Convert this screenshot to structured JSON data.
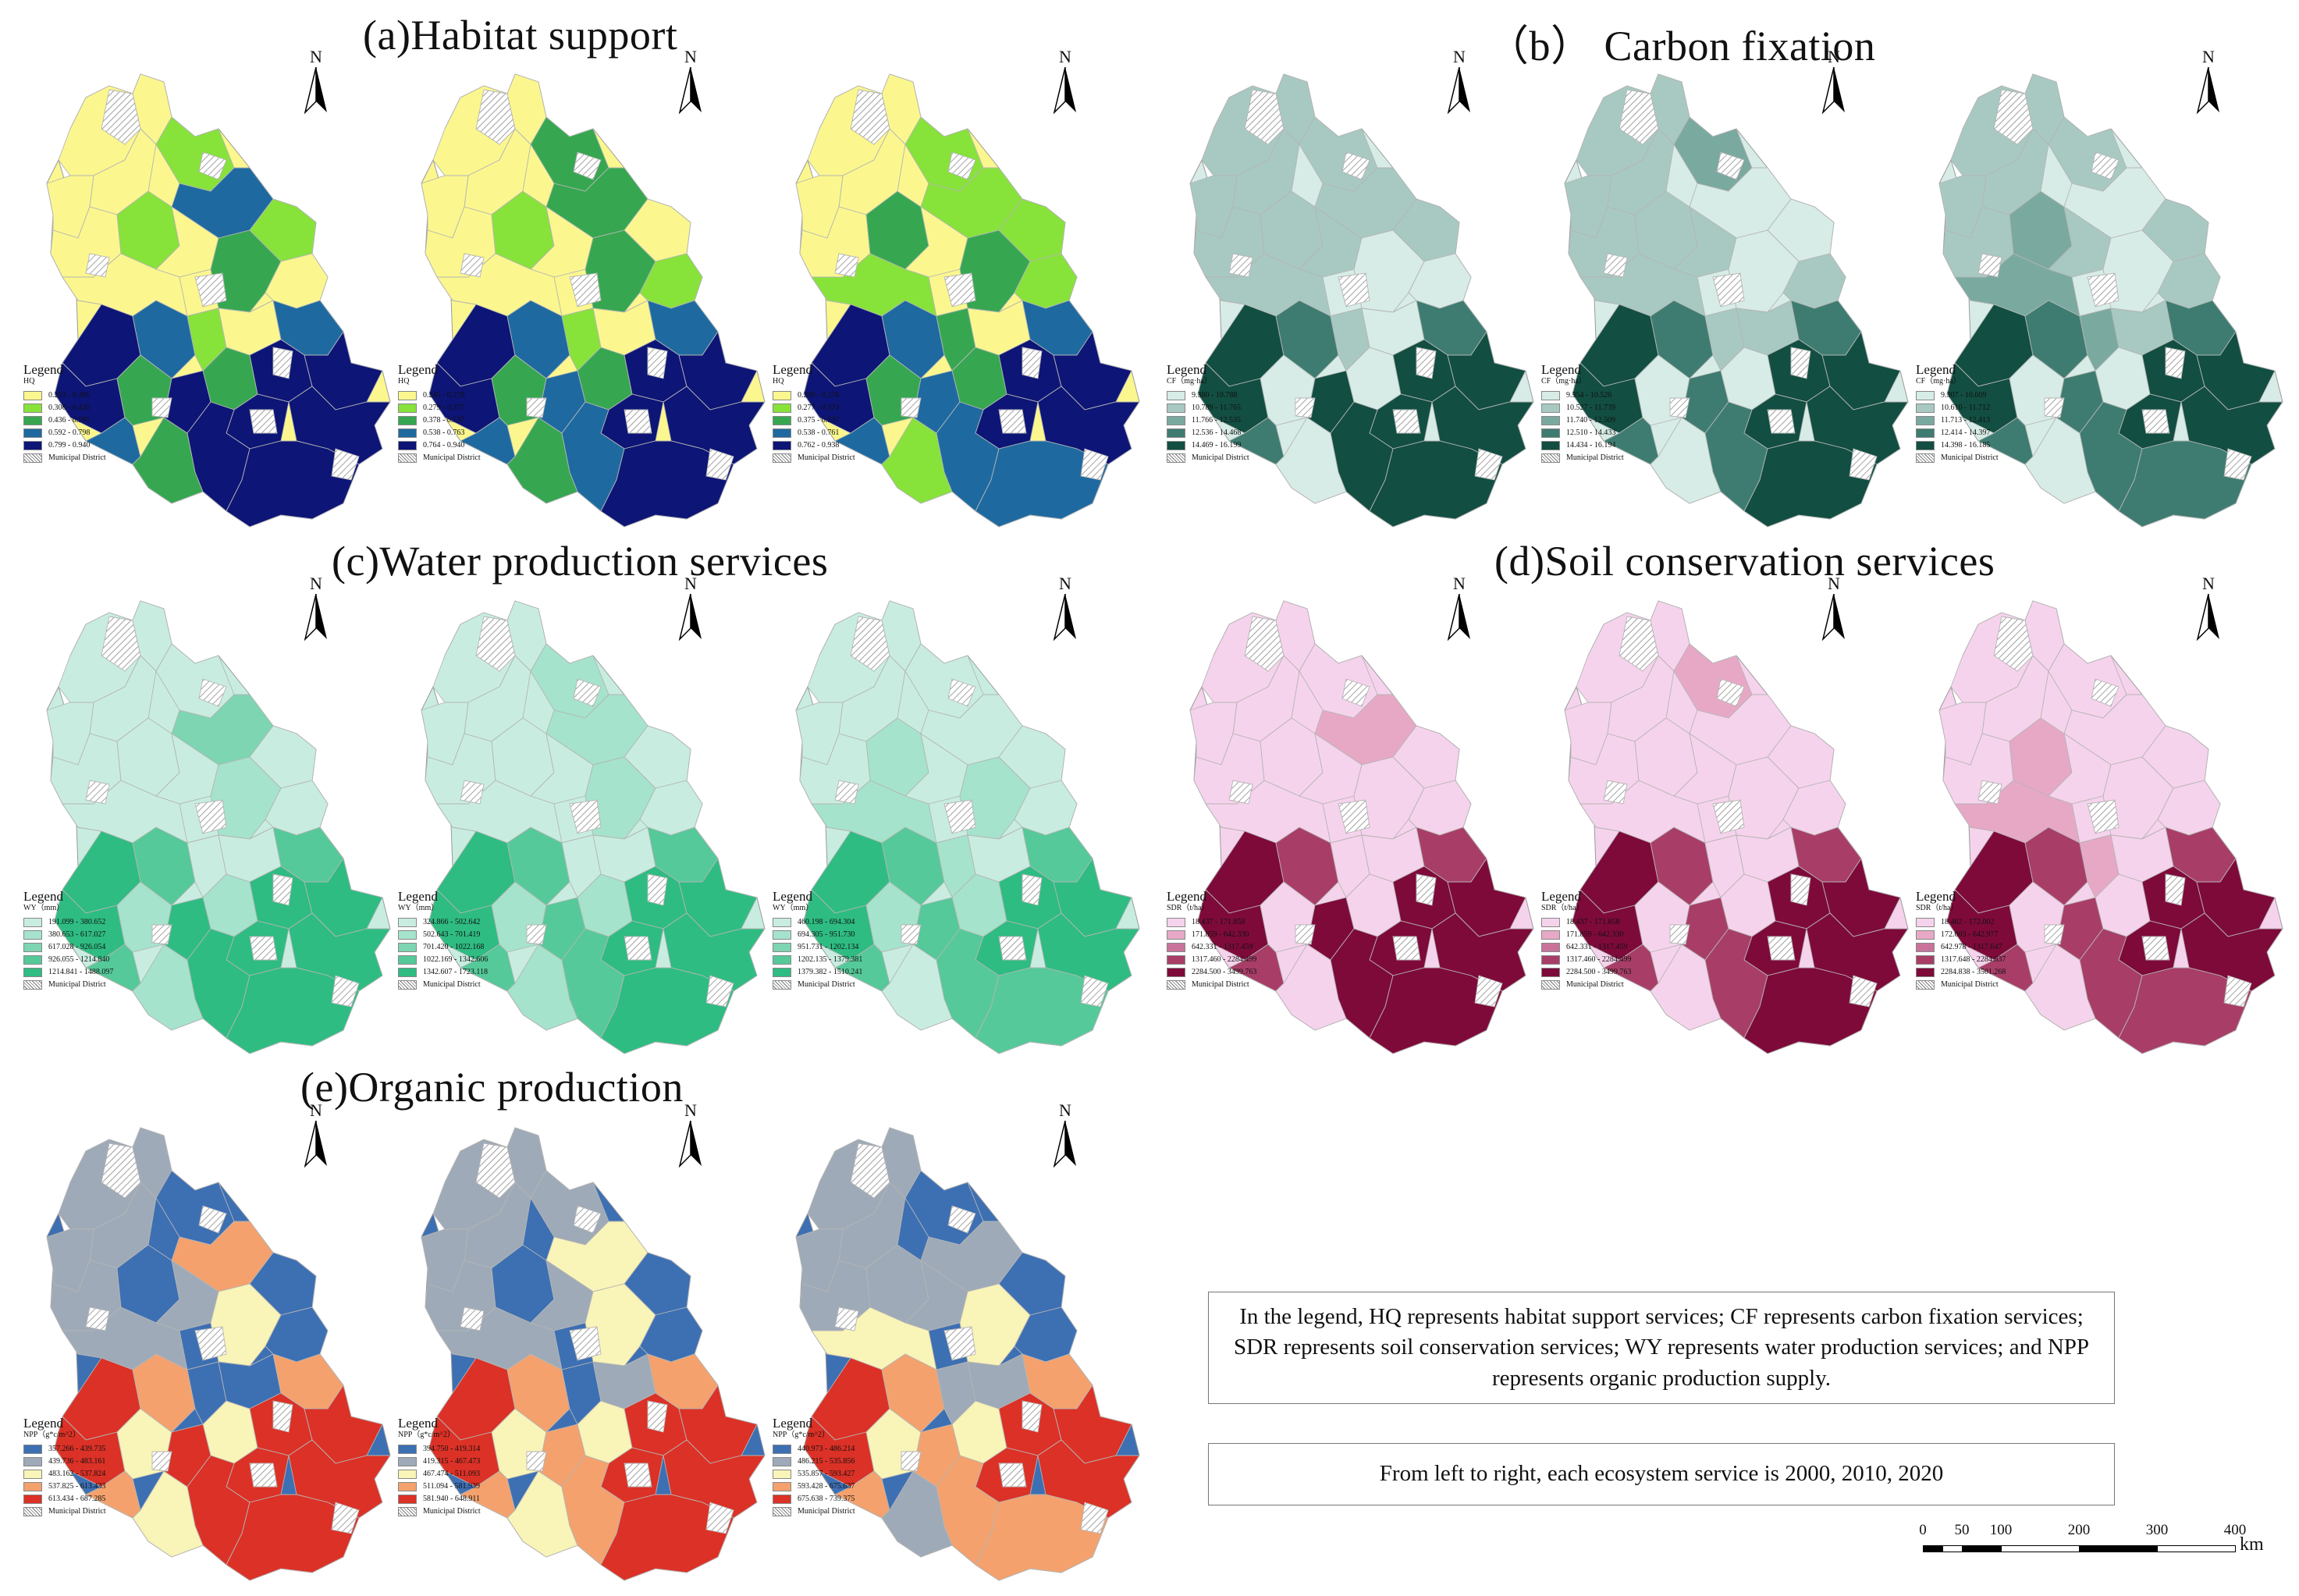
{
  "titles": {
    "habitat": "(a)Habitat support",
    "carbon": "（b） Carbon fixation",
    "water": "(c)Water production services",
    "soil": "(d)Soil conservation services",
    "organic": "(e)Organic production"
  },
  "north_label": "N",
  "legend_title": "Legend",
  "municipal_label": "Municipal District",
  "colors": {
    "hq": [
      "#fbf78e",
      "#87e23a",
      "#36a750",
      "#1e6aa0",
      "#0d1576"
    ],
    "cf": [
      "#d7ece6",
      "#a7c9c1",
      "#7aa9a0",
      "#3e7c71",
      "#124e42"
    ],
    "wy": [
      "#c8ede0",
      "#a5e3cc",
      "#7dd5b2",
      "#55c999",
      "#2ebc82"
    ],
    "sdr": [
      "#f6d3ec",
      "#e7a8c6",
      "#c9739a",
      "#a83e67",
      "#7e0a3a"
    ],
    "npp": [
      "#3d6fb3",
      "#9eaab8",
      "#f9f4b7",
      "#f4a16d",
      "#dc3126"
    ],
    "hatch": "#c8c8c8"
  },
  "panels": {
    "hq": [
      {
        "var": "HQ",
        "items": [
          "0.233 - 0.305",
          "0.306 - 0.435",
          "0.436 - 0.591",
          "0.592 - 0.798",
          "0.799 - 0.940"
        ]
      },
      {
        "var": "HQ",
        "items": [
          "0.245 - 0.278",
          "0.279 - 0.377",
          "0.378 - 0.537",
          "0.538 - 0.763",
          "0.764 - 0.940"
        ]
      },
      {
        "var": "HQ",
        "items": [
          "0.209 - 0.276",
          "0.277 - 0.374",
          "0.375 - 0.537",
          "0.538 - 0.761",
          "0.762 - 0.938"
        ]
      }
    ],
    "cf": [
      {
        "var": "CF（mg·ha）",
        "items": [
          "9.380 - 10.788",
          "10.789 - 11.765",
          "11.766 - 12.535",
          "12.536 - 14.468",
          "14.469 - 16.199"
        ]
      },
      {
        "var": "CF（mg·ha）",
        "items": [
          "9.354 - 10.526",
          "10.527 - 11.739",
          "11.740 - 12.509",
          "12.510 - 14.433",
          "14.434 - 16.194"
        ]
      },
      {
        "var": "CF（mg·ha）",
        "items": [
          "9.307 - 10.609",
          "10.610 - 11.712",
          "11.713 - 12.413",
          "12.414 - 14.397",
          "14.398 - 16.185"
        ]
      }
    ],
    "wy": [
      {
        "var": "WY（mm）",
        "items": [
          "191.099 - 380.652",
          "380.653 - 617.027",
          "617.028 - 926.054",
          "926.055 - 1214.840",
          "1214.841 - 1488.097"
        ]
      },
      {
        "var": "WY（mm）",
        "items": [
          "324.866 - 502.642",
          "502.643 - 701.419",
          "701.420 - 1022.168",
          "1022.169 - 1342.606",
          "1342.607 - 1723.118"
        ]
      },
      {
        "var": "WY（mm）",
        "items": [
          "460.198 - 694.304",
          "694.305 - 951.730",
          "951.731 - 1202.134",
          "1202.135 - 1379.381",
          "1379.382 - 1510.241"
        ]
      }
    ],
    "sdr": [
      {
        "var": "SDR（t/ha）",
        "items": [
          "18.437 - 171.858",
          "171.859 - 642.330",
          "642.331 - 1317.459",
          "1317.460 - 2284.499",
          "2284.500 - 3499.763"
        ]
      },
      {
        "var": "SDR（t/ha）",
        "items": [
          "18.437 - 171.858",
          "171.859 - 642.330",
          "642.331 - 1317.459",
          "1317.460 - 2284.499",
          "2284.500 - 3499.763"
        ]
      },
      {
        "var": "SDR（t/ha）",
        "items": [
          "18.462 - 172.002",
          "172.003 - 642.977",
          "642.978 - 1317.647",
          "1317.648 - 2284.837",
          "2284.838 - 3501.268"
        ]
      }
    ],
    "npp": [
      {
        "var": "NPP（g*c/m^2）",
        "items": [
          "357.266 - 439.735",
          "439.736 - 483.161",
          "483.162 - 537.824",
          "537.825 - 613.433",
          "613.434 - 687.285"
        ]
      },
      {
        "var": "NPP（g*c/m^2）",
        "items": [
          "394.750 - 419.314",
          "419.315 - 467.473",
          "467.474 - 511.093",
          "511.094 - 581.939",
          "581.940 - 648.911"
        ]
      },
      {
        "var": "NPP（g*c/m^2）",
        "items": [
          "440.973 - 486.214",
          "486.215 - 535.856",
          "535.857 - 593.427",
          "593.428 - 675.637",
          "675.638 - 739.375"
        ]
      }
    ]
  },
  "notes": {
    "abbreviations": "In the legend, HQ represents habitat support services; CF represents carbon fixation services; SDR represents soil conservation services; WY represents water production services; and NPP represents organic production supply.",
    "years": "From left to right, each ecosystem service is 2000, 2010, 2020"
  },
  "scale": {
    "ticks": [
      "0",
      "50",
      "100",
      "200",
      "300",
      "400"
    ],
    "unit": "km"
  }
}
